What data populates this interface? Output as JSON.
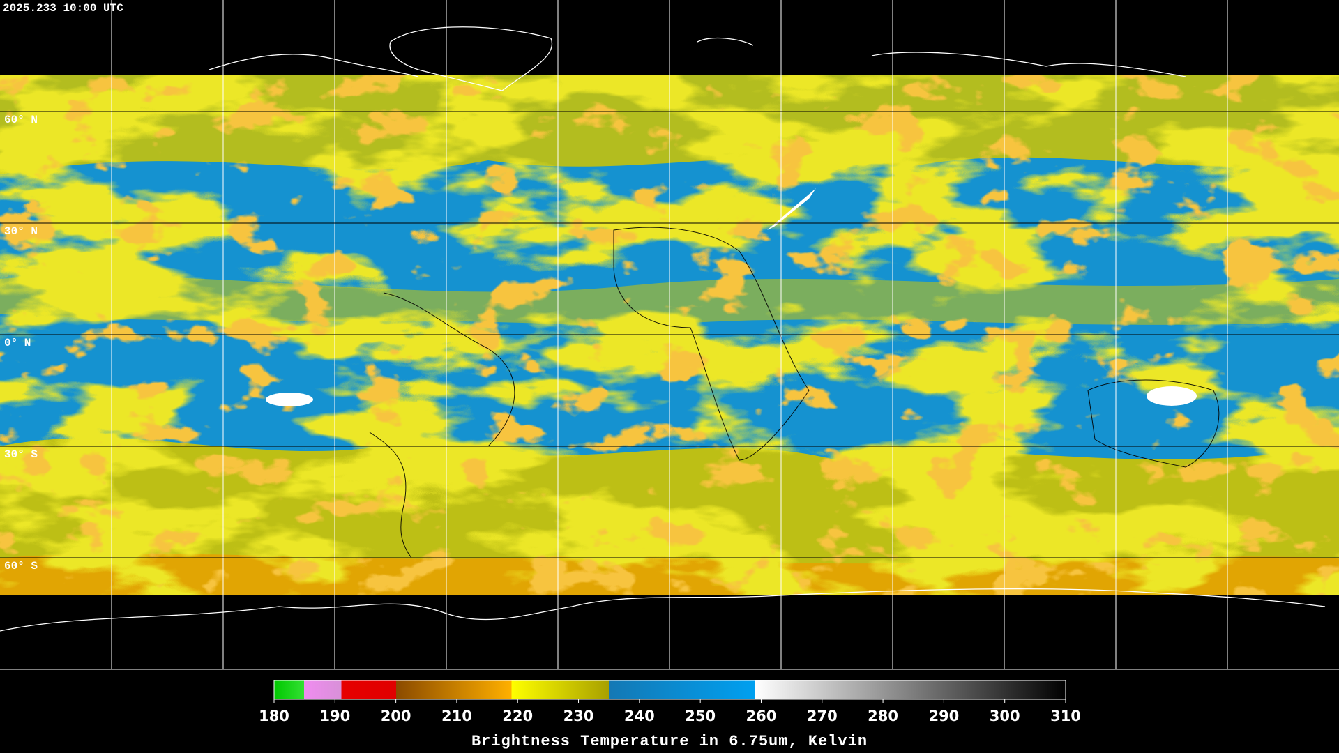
{
  "timestamp": "2025.233 10:00 UTC",
  "latitude_labels": [
    "60° N",
    "30° N",
    "0° N",
    "30° S",
    "60° S"
  ],
  "colorbar": {
    "title": "Brightness Temperature in 6.75um, Kelvin",
    "ticks": [
      180,
      190,
      200,
      210,
      220,
      230,
      240,
      250,
      260,
      270,
      280,
      290,
      300,
      310
    ]
  }
}
